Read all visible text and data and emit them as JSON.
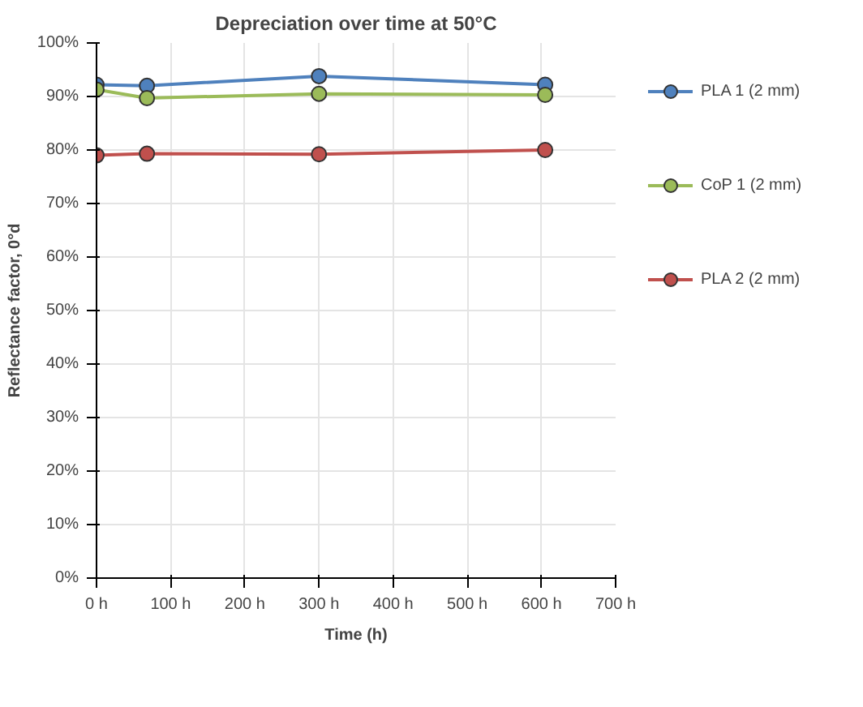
{
  "chart_data": {
    "type": "line",
    "title": "Depreciation over time at 50°C",
    "xlabel": "Time (h)",
    "ylabel": "Reflectance factor, 0°d",
    "x": [
      0,
      68,
      300,
      605
    ],
    "series": [
      {
        "name": "PLA 1 (2 mm)",
        "color": "#4f81bd",
        "values": [
          92.2,
          92.0,
          93.8,
          92.2
        ]
      },
      {
        "name": "CoP 1 (2 mm)",
        "color": "#9bbb59",
        "values": [
          91.3,
          89.7,
          90.5,
          90.3
        ]
      },
      {
        "name": "PLA 2 (2 mm)",
        "color": "#c0504d",
        "values": [
          79.0,
          79.3,
          79.2,
          80.0
        ]
      }
    ],
    "xlim": [
      0,
      700
    ],
    "ylim": [
      0,
      100
    ],
    "xticks": [
      {
        "value": 0,
        "label": "0 h"
      },
      {
        "value": 100,
        "label": "100 h"
      },
      {
        "value": 200,
        "label": "200 h"
      },
      {
        "value": 300,
        "label": "300 h"
      },
      {
        "value": 400,
        "label": "400 h"
      },
      {
        "value": 500,
        "label": "500 h"
      },
      {
        "value": 600,
        "label": "600 h"
      },
      {
        "value": 700,
        "label": "700 h"
      }
    ],
    "yticks": [
      {
        "value": 0,
        "label": "0%"
      },
      {
        "value": 10,
        "label": "10%"
      },
      {
        "value": 20,
        "label": "20%"
      },
      {
        "value": 30,
        "label": "30%"
      },
      {
        "value": 40,
        "label": "40%"
      },
      {
        "value": 50,
        "label": "50%"
      },
      {
        "value": 60,
        "label": "60%"
      },
      {
        "value": 70,
        "label": "70%"
      },
      {
        "value": 80,
        "label": "80%"
      },
      {
        "value": 90,
        "label": "90%"
      },
      {
        "value": 100,
        "label": "100%"
      }
    ],
    "grid": true,
    "legend": "right",
    "marker": "circle",
    "line_style": "solid"
  }
}
